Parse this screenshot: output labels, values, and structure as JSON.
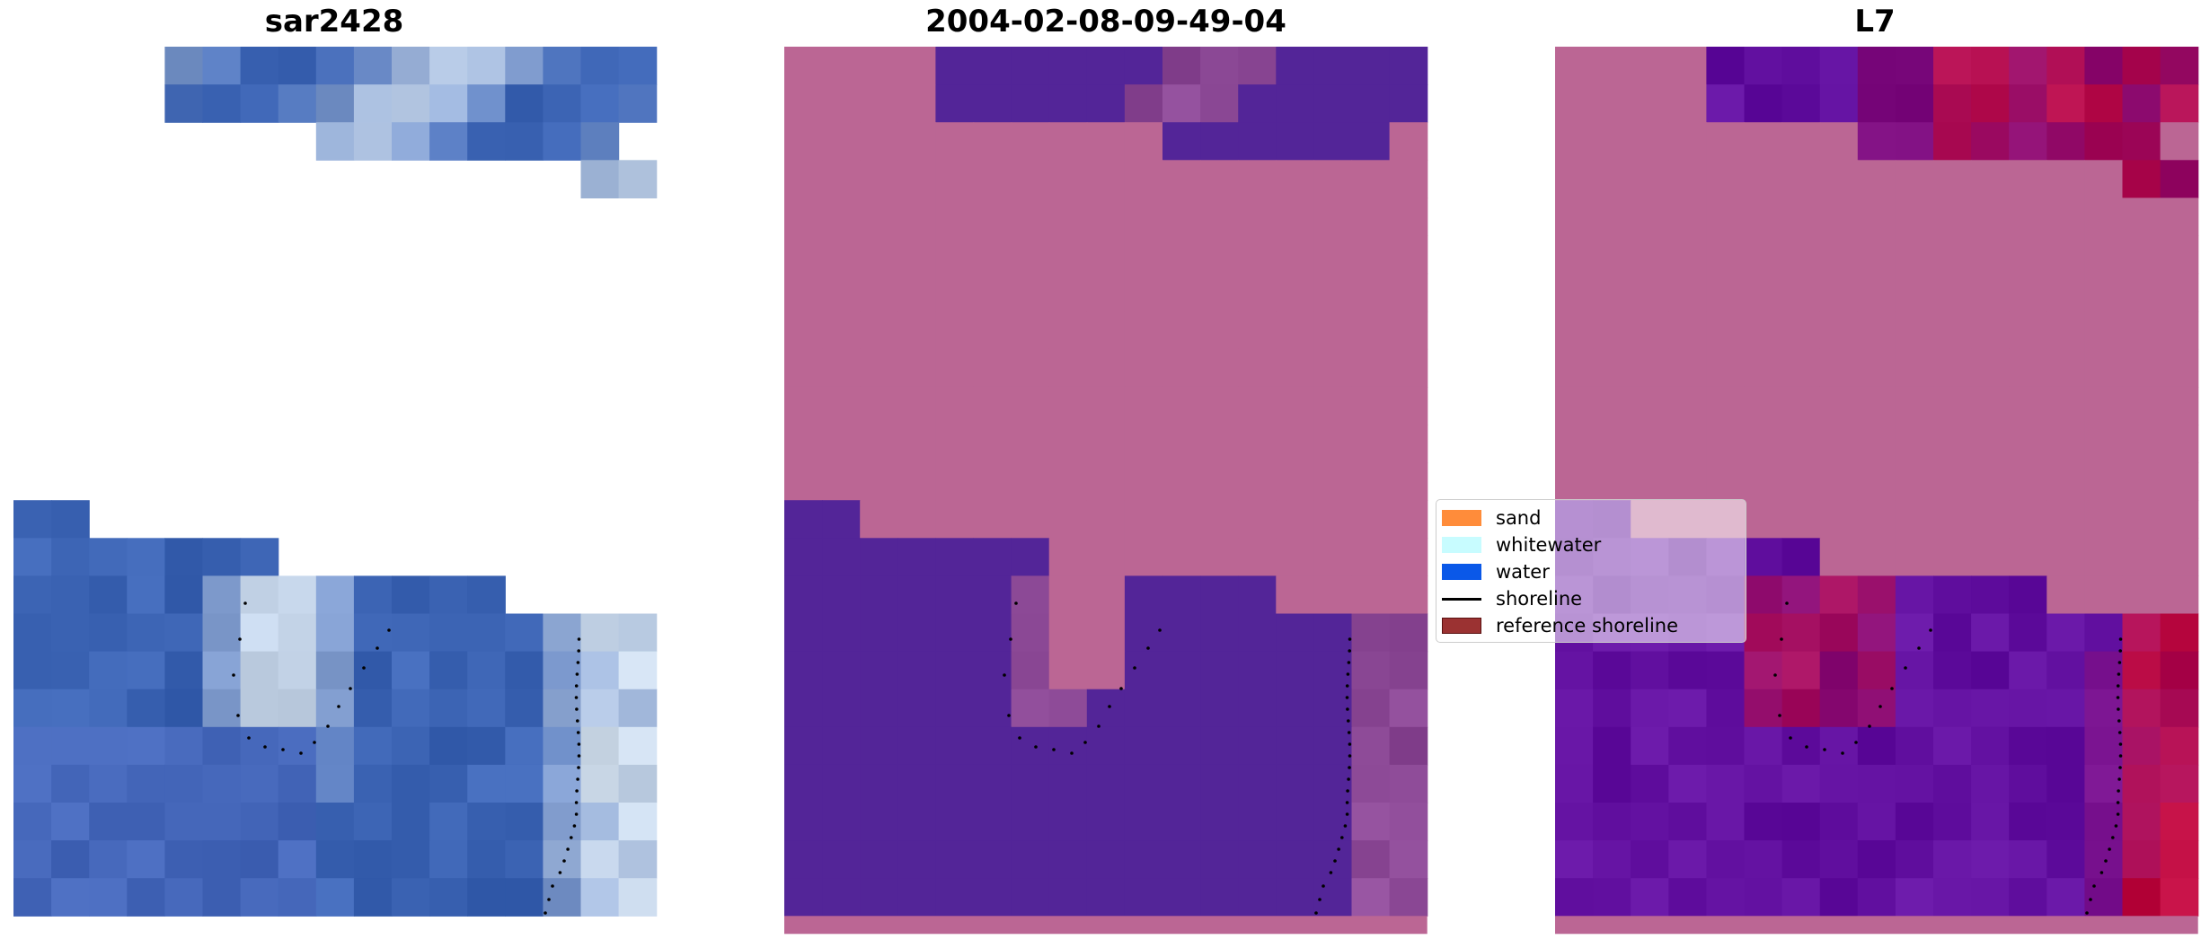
{
  "panels": [
    {
      "title": "sar2428",
      "style": "rgb"
    },
    {
      "title": "2004-02-08-09-49-04",
      "style": "classification"
    },
    {
      "title": "L7",
      "style": "index"
    }
  ],
  "legend": {
    "entries": [
      {
        "label": "sand",
        "color": "#ff8c3a",
        "kind": "patch"
      },
      {
        "label": "whitewater",
        "color": "#c8fcff",
        "kind": "patch"
      },
      {
        "label": "water",
        "color": "#0a58e8",
        "kind": "patch"
      },
      {
        "label": "shoreline",
        "color": "#000000",
        "kind": "line"
      },
      {
        "label": "reference shoreline",
        "color": "#9b3232",
        "kind": "patch"
      }
    ]
  },
  "colors": {
    "rgb_water": "#3c64b4",
    "rgb_bright": "#e6f0f5",
    "class_sand_overlay": "#bb6694",
    "class_water_overlay": "#532598",
    "index_water": "#6210a0",
    "index_land": "#c40a3a",
    "index_overlay": "#bb6694",
    "shoreline_dots": "#000000"
  }
}
